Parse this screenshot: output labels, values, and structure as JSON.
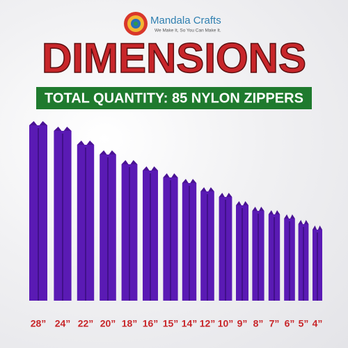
{
  "logo": {
    "brand": "Mandala Crafts",
    "tagline": "We Make It, So You Can Make It."
  },
  "title": "DIMENSIONS",
  "banner": "TOTAL QUANTITY:  85 NYLON ZIPPERS",
  "zippers": [
    "28”",
    "24”",
    "22”",
    "20”",
    "18”",
    "16”",
    "15”",
    "14”",
    "12”",
    "10”",
    "9”",
    "8”",
    "7”",
    "6”",
    "5”",
    "4”"
  ]
}
